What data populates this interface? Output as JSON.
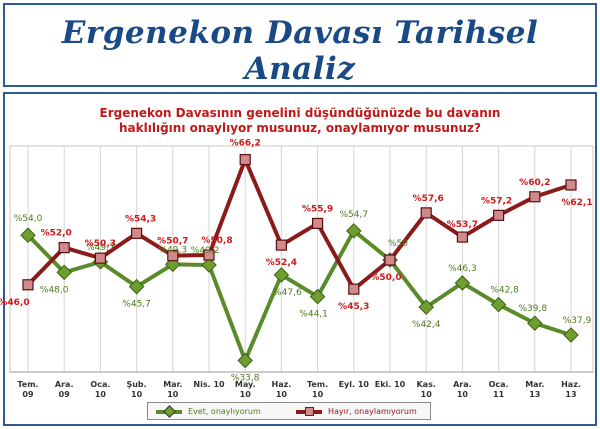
{
  "header": {
    "title": "Ergenekon Davası Tarihsel Analiz"
  },
  "chart_data": {
    "type": "line",
    "title_line1": "Ergenekon Davasının genelini düşündüğünüzde bu davanın",
    "title_line2": "haklılığını onaylıyor musunuz, onaylamıyor musunuz?",
    "categories": [
      [
        "Tem.",
        "09"
      ],
      [
        "Ara.",
        "09"
      ],
      [
        "Oca.",
        "10"
      ],
      [
        "Şub.",
        "10"
      ],
      [
        "Mar.",
        "10"
      ],
      [
        "Nis. 10"
      ],
      [
        "May.",
        "10"
      ],
      [
        "Haz.",
        "10"
      ],
      [
        "Tem.",
        "10"
      ],
      [
        "Eyl. 10"
      ],
      [
        "Eki. 10"
      ],
      [
        "Kas.",
        "10"
      ],
      [
        "Ara.",
        "10"
      ],
      [
        "Oca.",
        "11"
      ],
      [
        "Mar.",
        "13"
      ],
      [
        "Haz.",
        "13"
      ]
    ],
    "ylim": [
      30,
      70
    ],
    "grid": true,
    "legend_position": "bottom",
    "series": [
      {
        "name": "Evet, onaylıyorum",
        "color": "#5a8a2a",
        "marker_color": "#6e9f2e",
        "label_color": "#4f7a1c",
        "values": [
          54.0,
          48.0,
          49.7,
          45.7,
          49.3,
          49.2,
          33.8,
          47.6,
          44.1,
          54.7,
          50.0,
          42.4,
          46.3,
          42.8,
          39.8,
          37.9
        ],
        "labels": [
          "%54,0",
          "%48,0",
          "%49,7",
          "%45,7",
          "%49,3",
          "%49,2",
          "%33,8",
          "%47,6",
          "%44,1",
          "%54,7",
          "%50",
          "%42,4",
          "%46,3",
          "%42,8",
          "%39,8",
          "%37,9"
        ]
      },
      {
        "name": "Hayır, onaylamıyorum",
        "color": "#8b1a1a",
        "marker_color": "#d08a8a",
        "label_color": "#d01818",
        "values": [
          46.0,
          52.0,
          50.3,
          54.3,
          50.7,
          50.8,
          66.2,
          52.4,
          55.9,
          45.3,
          50.0,
          57.6,
          53.7,
          57.2,
          60.2,
          62.1
        ],
        "labels": [
          "%46,0",
          "%52,0",
          "%50,3",
          "%54,3",
          "%50,7",
          "%50,8",
          "%66,2",
          "%52,4",
          "%55,9",
          "%45,3",
          "%50,0",
          "%57,6",
          "%53,7",
          "%57,2",
          "%60,2",
          "%62,1"
        ]
      }
    ]
  }
}
